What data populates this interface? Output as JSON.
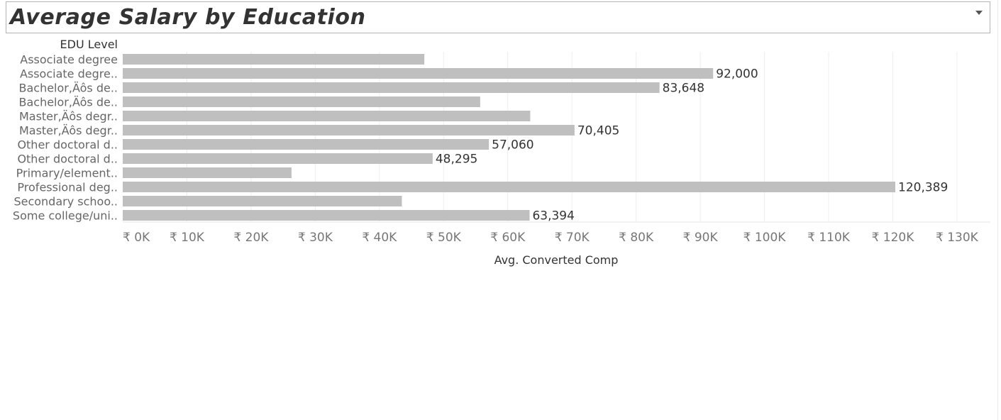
{
  "header": {
    "title": "Average Salary by Education"
  },
  "chart_data": {
    "type": "bar",
    "orientation": "horizontal",
    "row_header": "EDU Level",
    "xlabel": "Avg. Converted Comp",
    "ylabel": "",
    "xlim": [
      0,
      130000
    ],
    "x_ticks": [
      0,
      10000,
      20000,
      30000,
      40000,
      50000,
      60000,
      70000,
      80000,
      90000,
      100000,
      110000,
      120000,
      130000
    ],
    "x_tick_labels": [
      "₹ 0K",
      "₹ 10K",
      "₹ 20K",
      "₹ 30K",
      "₹ 40K",
      "₹ 50K",
      "₹ 60K",
      "₹ 70K",
      "₹ 80K",
      "₹ 90K",
      "₹ 100K",
      "₹ 110K",
      "₹ 120K",
      "₹ 130K"
    ],
    "categories": [
      "Associate degree",
      "Associate degre..",
      "Bachelor,Äôs de..",
      "Bachelor,Äôs de..",
      "Master,Äôs degr..",
      "Master,Äôs degr..",
      "Other doctoral d..",
      "Other doctoral d..",
      "Primary/element..",
      "Professional deg..",
      "Secondary schoo..",
      "Some college/uni.."
    ],
    "values": [
      47000,
      92000,
      83648,
      55700,
      63500,
      70405,
      57060,
      48295,
      26300,
      120389,
      43500,
      63394
    ],
    "value_labels": [
      "",
      "92,000",
      "83,648",
      "",
      "",
      "70,405",
      "57,060",
      "48,295",
      "",
      "120,389",
      "",
      "63,394"
    ],
    "bar_color": "#bfbfbf",
    "grid": true
  }
}
